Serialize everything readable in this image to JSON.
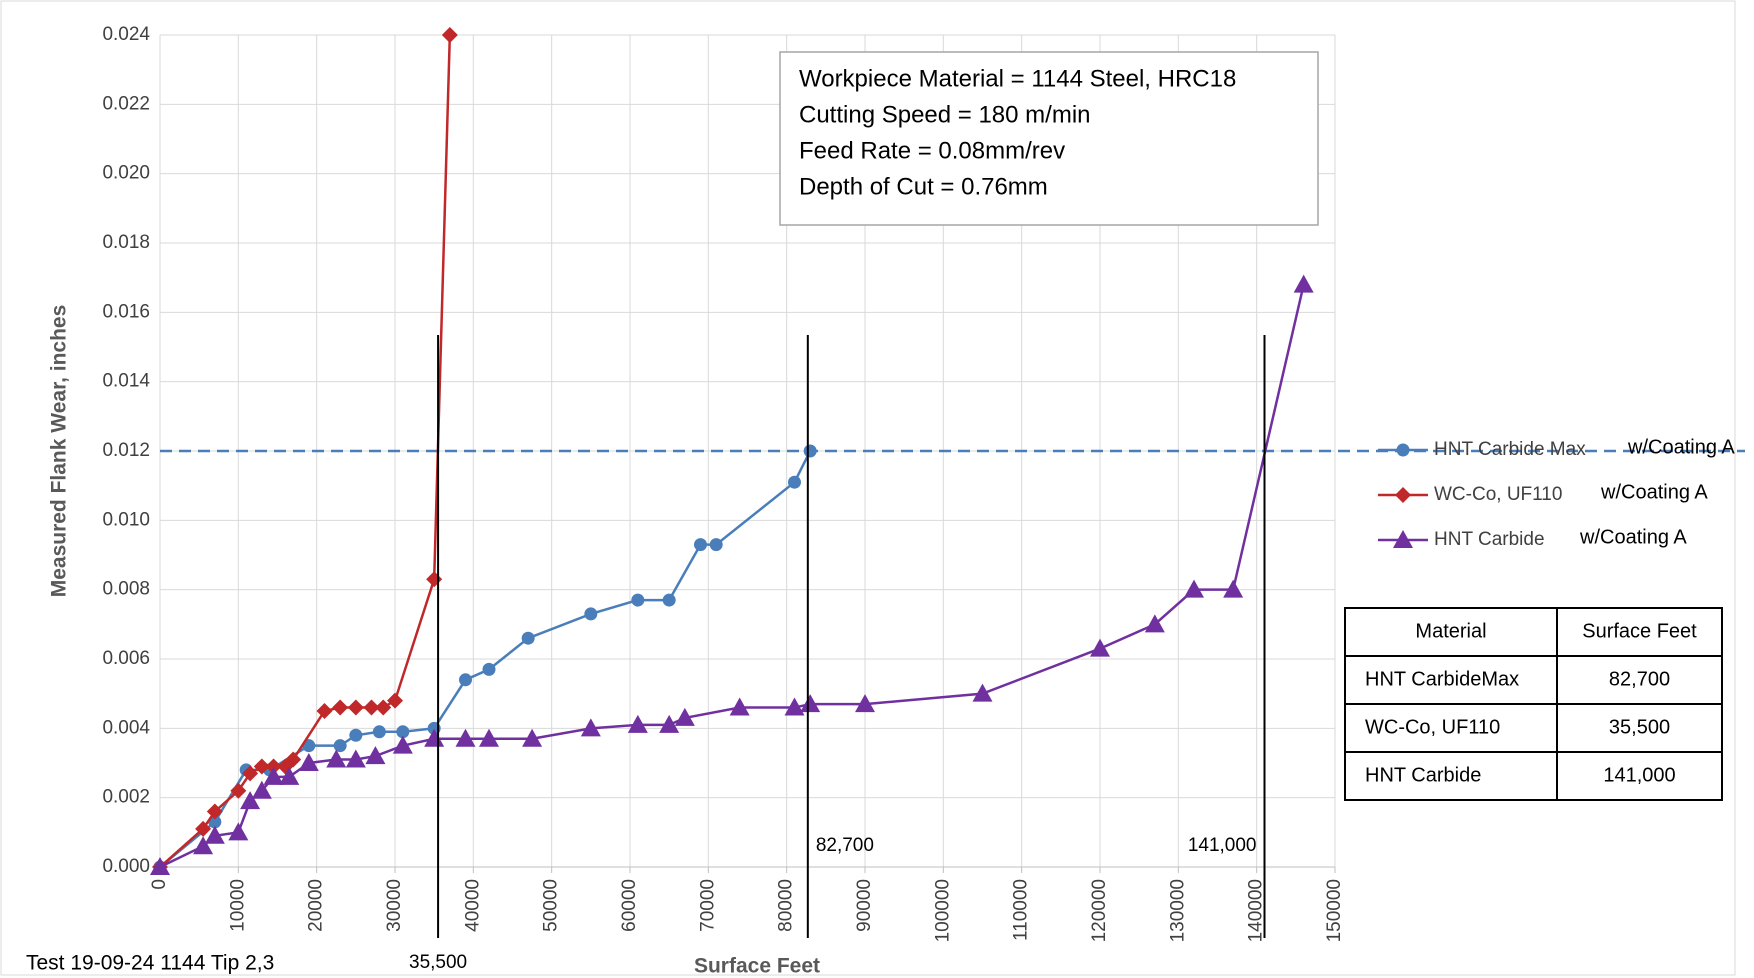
{
  "chart_data": {
    "type": "line",
    "xlabel": "Surface Feet",
    "ylabel": "Measured Flank Wear, inches",
    "footer": "Test 19-09-24 1144 Tip 2,3",
    "xlim": [
      0,
      150000
    ],
    "ylim": [
      0,
      0.024
    ],
    "xticks": [
      0,
      10000,
      20000,
      30000,
      40000,
      50000,
      60000,
      70000,
      80000,
      90000,
      100000,
      110000,
      120000,
      130000,
      140000,
      150000
    ],
    "yticks": [
      {
        "value": 0,
        "label": "0.000"
      },
      {
        "value": 0.002,
        "label": "0.002"
      },
      {
        "value": 0.004,
        "label": "0.004"
      },
      {
        "value": 0.006,
        "label": "0.006"
      },
      {
        "value": 0.008,
        "label": "0.008"
      },
      {
        "value": 0.01,
        "label": "0.010"
      },
      {
        "value": 0.012,
        "label": "0.012"
      },
      {
        "value": 0.014,
        "label": "0.014"
      },
      {
        "value": 0.016,
        "label": "0.016"
      },
      {
        "value": 0.018,
        "label": "0.018"
      },
      {
        "value": 0.02,
        "label": "0.020"
      },
      {
        "value": 0.022,
        "label": "0.022"
      },
      {
        "value": 0.024,
        "label": "0.024"
      }
    ],
    "grid": true,
    "threshold": {
      "value": 0.012,
      "color": "#4a7ebb"
    },
    "reference_lines": [
      {
        "x": 35500,
        "label": "35,500"
      },
      {
        "x": 82700,
        "label": "82,700"
      },
      {
        "x": 141000,
        "label": "141,000"
      }
    ],
    "series": [
      {
        "name": "HNT Carbide Max",
        "note": "w/Coating A",
        "color": "#4a7ebb",
        "marker": "circle",
        "x": [
          0,
          7000,
          11000,
          14000,
          19000,
          23000,
          25000,
          28000,
          31000,
          35000,
          39000,
          42000,
          47000,
          55000,
          61000,
          65000,
          69000,
          71000,
          81000,
          83000
        ],
        "values": [
          0,
          0.0013,
          0.0028,
          0.0028,
          0.0035,
          0.0035,
          0.0038,
          0.0039,
          0.0039,
          0.004,
          0.0054,
          0.0057,
          0.0066,
          0.0073,
          0.0077,
          0.0077,
          0.0093,
          0.0093,
          0.0111,
          0.012
        ]
      },
      {
        "name": "WC-Co, UF110",
        "note": "w/Coating A",
        "color": "#c0282a",
        "marker": "diamond",
        "x": [
          0,
          5500,
          7000,
          10000,
          11500,
          13000,
          14500,
          16000,
          17000,
          21000,
          23000,
          25000,
          27000,
          28500,
          30000,
          35000,
          37000
        ],
        "values": [
          0,
          0.0011,
          0.0016,
          0.0022,
          0.0027,
          0.0029,
          0.0029,
          0.0029,
          0.0031,
          0.0045,
          0.0046,
          0.0046,
          0.0046,
          0.0046,
          0.0048,
          0.0083,
          0.024
        ]
      },
      {
        "name": "HNT Carbide",
        "note": "w/Coating A",
        "color": "#7030a0",
        "marker": "triangle",
        "x": [
          0,
          5500,
          7000,
          10000,
          11500,
          13000,
          14500,
          16500,
          19000,
          22500,
          25000,
          27500,
          31000,
          35000,
          39000,
          42000,
          47500,
          55000,
          61000,
          65000,
          67000,
          74000,
          81000,
          83000,
          90000,
          105000,
          120000,
          127000,
          132000,
          137000,
          146000
        ],
        "values": [
          0,
          0.0006,
          0.0009,
          0.001,
          0.0019,
          0.0022,
          0.0026,
          0.0026,
          0.003,
          0.0031,
          0.0031,
          0.0032,
          0.0035,
          0.0037,
          0.0037,
          0.0037,
          0.0037,
          0.004,
          0.0041,
          0.0041,
          0.0043,
          0.0046,
          0.0046,
          0.0047,
          0.0047,
          0.005,
          0.0063,
          0.007,
          0.008,
          0.008,
          0.0168
        ]
      }
    ],
    "info_box": [
      "Workpiece Material = 1144 Steel, HRC18",
      "Cutting Speed = 180 m/min",
      "Feed Rate = 0.08mm/rev",
      "Depth of Cut = 0.76mm"
    ],
    "table": {
      "columns": [
        "Material",
        "Surface Feet"
      ],
      "rows": [
        [
          "HNT CarbideMax",
          "82,700"
        ],
        [
          "WC-Co, UF110",
          "35,500"
        ],
        [
          "HNT Carbide",
          "141,000"
        ]
      ]
    }
  }
}
